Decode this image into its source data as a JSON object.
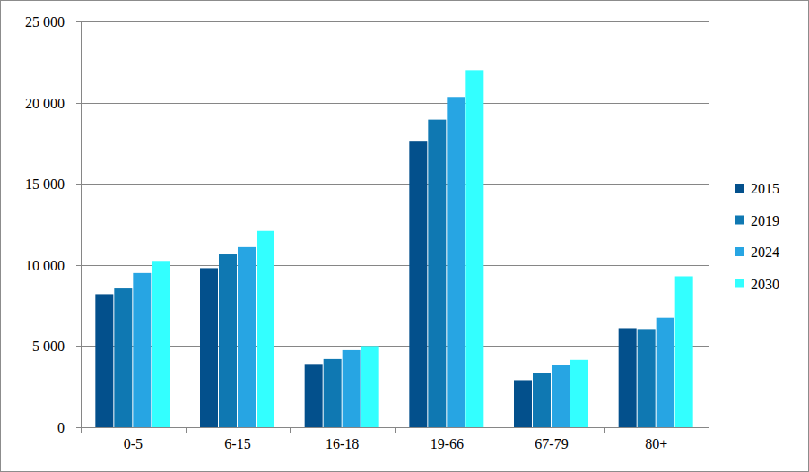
{
  "chart_data": {
    "type": "bar",
    "categories": [
      "0-5",
      "6-15",
      "16-18",
      "19-66",
      "67-79",
      "80+"
    ],
    "series": [
      {
        "name": "2015",
        "color": "#03508c",
        "values": [
          8200,
          9800,
          3900,
          17650,
          2900,
          6100
        ]
      },
      {
        "name": "2019",
        "color": "#0f78b2",
        "values": [
          8550,
          10650,
          4200,
          18950,
          3350,
          6050
        ]
      },
      {
        "name": "2024",
        "color": "#27a5e3",
        "values": [
          9500,
          11100,
          4750,
          20350,
          3850,
          6750
        ]
      },
      {
        "name": "2030",
        "color": "#33ffff",
        "values": [
          10250,
          12100,
          5000,
          22000,
          4150,
          9300
        ]
      }
    ],
    "ylim": [
      0,
      25000
    ],
    "yticks": [
      0,
      {
        "value": 5000,
        "label": "5 000"
      },
      {
        "value": 10000,
        "label": "10 000"
      },
      {
        "value": 15000,
        "label": "15 000"
      },
      {
        "value": 20000,
        "label": "20 000"
      },
      {
        "value": 25000,
        "label": "25 000"
      }
    ],
    "grid": true,
    "legend": "right"
  }
}
